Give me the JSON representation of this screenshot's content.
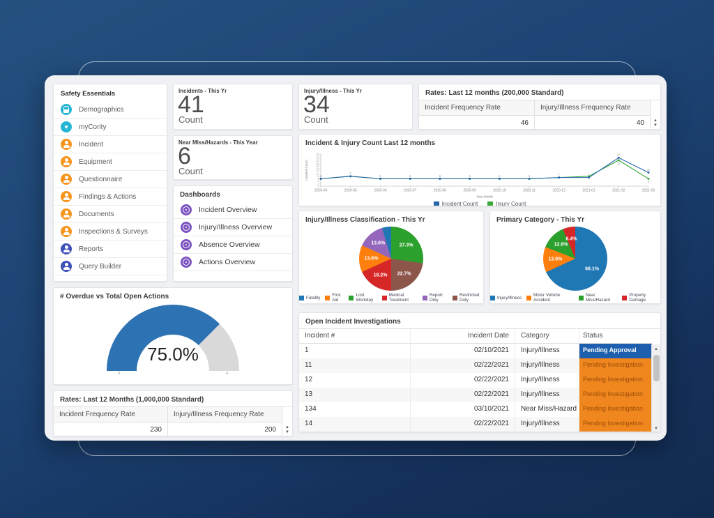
{
  "sidebar": {
    "title": "Safety Essentials",
    "items": [
      {
        "label": "Demographics",
        "icon": "lock-icon",
        "color": "#23b5d3"
      },
      {
        "label": "myCority",
        "icon": "heart-icon",
        "color": "#23b5d3"
      },
      {
        "label": "Incident",
        "icon": "person-icon",
        "color": "#f7941d"
      },
      {
        "label": "Equipment",
        "icon": "person-icon",
        "color": "#f7941d"
      },
      {
        "label": "Questionnaire",
        "icon": "person-icon",
        "color": "#f7941d"
      },
      {
        "label": "Findings & Actions",
        "icon": "person-icon",
        "color": "#f7941d"
      },
      {
        "label": "Documents",
        "icon": "person-icon",
        "color": "#f7941d"
      },
      {
        "label": "Inspections & Surveys",
        "icon": "person-icon",
        "color": "#f7941d"
      },
      {
        "label": "Reports",
        "icon": "person-icon",
        "color": "#3f51b5"
      },
      {
        "label": "Query Builder",
        "icon": "person-icon",
        "color": "#3f51b5"
      }
    ]
  },
  "stat_cards": {
    "incidents": {
      "title": "Incidents - This Yr",
      "value": "41",
      "unit": "Count"
    },
    "near_miss": {
      "title": "Near Miss/Hazards - This Year",
      "value": "6",
      "unit": "Count"
    },
    "injury": {
      "title": "Injury/Illness - This Yr",
      "value": "34",
      "unit": "Count"
    }
  },
  "dashboards_panel": {
    "title": "Dashboards",
    "icon": "gauge-icon",
    "icon_color": "#7b52c1",
    "items": [
      "Incident Overview",
      "Injury/Illness Overview",
      "Absence Overview",
      "Actions Overview"
    ]
  },
  "rates_200k": {
    "title": "Rates: Last 12 months (200,000 Standard)",
    "columns": [
      "Incident Frequency Rate",
      "Injury/Illness Frequency Rate"
    ],
    "values": [
      "46",
      "40"
    ]
  },
  "rates_1m": {
    "title": "Rates: Last 12 Months (1,000,000 Standard)",
    "columns": [
      "Incident Frequency Rate",
      "Injury/Illness Frequency Rate"
    ],
    "values": [
      "230",
      "200"
    ]
  },
  "table": {
    "title": "Open Incident Investigations",
    "columns": [
      "Incident #",
      "Incident Date",
      "Category",
      "Status"
    ],
    "rows": [
      [
        "1",
        "02/10/2021",
        "Injury/Illness",
        "Pending Approval"
      ],
      [
        "11",
        "02/22/2021",
        "Injury/Illness",
        "Pending Investigation"
      ],
      [
        "12",
        "02/22/2021",
        "Injury/Illness",
        "Pending Investigation"
      ],
      [
        "13",
        "02/22/2021",
        "Injury/Illness",
        "Pending Investigation"
      ],
      [
        "134",
        "03/10/2021",
        "Near Miss/Hazard",
        "Pending Investigation"
      ],
      [
        "14",
        "02/22/2021",
        "Injury/Illness",
        "Pending Investigation"
      ]
    ],
    "status_styles": {
      "Pending Approval": {
        "bg": "#1d5fae",
        "color": "#ffffff",
        "bold": true
      },
      "Pending Investigation": {
        "bg": "#f0861e",
        "color": "#9c4e0a",
        "bold": false
      }
    }
  },
  "chart_data": [
    {
      "type": "line",
      "title": "Incident & Injury Count Last 12 months",
      "xlabel": "Year-Month",
      "ylabel": "Incident Count",
      "x": [
        "2020-04",
        "2020-05",
        "2020-06",
        "2020-07",
        "2020-08",
        "2020-09",
        "2020-10",
        "2020-11",
        "2020-12",
        "2021-01",
        "2021-02",
        "2021-03"
      ],
      "series": [
        {
          "name": "Incident Count",
          "color": "#2565ae",
          "values": [
            6,
            8,
            6,
            6,
            6,
            6,
            6,
            6,
            7,
            7,
            23,
            11
          ]
        },
        {
          "name": "Injury Count",
          "color": "#3aa83a",
          "values": [
            6,
            8,
            6,
            6,
            6,
            6,
            6,
            6,
            7,
            8,
            21,
            6
          ]
        }
      ],
      "ylim": [
        0,
        26
      ],
      "ytick_step": 2,
      "grid": false,
      "legend_position": "bottom"
    },
    {
      "type": "pie",
      "title": "Injury/Illness Classification - This Yr",
      "start_angle": "top",
      "direction": "clockwise",
      "slices": [
        {
          "label": "Lost Workday",
          "value": 27.3,
          "color": "#2ca02c",
          "pct_label": "27.3%"
        },
        {
          "label": "Restricted Duty",
          "value": 22.7,
          "color": "#8c564b",
          "pct_label": "22.7%"
        },
        {
          "label": "Medical Treatment",
          "value": 18.2,
          "color": "#d62728",
          "pct_label": "18.2%"
        },
        {
          "label": "First Aid",
          "value": 13.6,
          "color": "#ff7f0e",
          "pct_label": "13.6%"
        },
        {
          "label": "Report Only",
          "value": 13.6,
          "color": "#9467bd",
          "pct_label": "13.6%"
        },
        {
          "label": "Fatality",
          "value": 4.6,
          "color": "#1f77b4",
          "pct_label": ""
        }
      ],
      "legend": [
        "Fatality",
        "First Aid",
        "Lost Workday",
        "Medical Treatment",
        "Report Only",
        "Restricted Duty"
      ]
    },
    {
      "type": "pie",
      "title": "Primary Category - This Yr",
      "start_angle": "top",
      "direction": "clockwise",
      "slices": [
        {
          "label": "Injury/Illness",
          "value": 68.1,
          "color": "#1f77b4",
          "pct_label": "68.1%"
        },
        {
          "label": "Motor Vehicle Accident",
          "value": 12.8,
          "color": "#ff7f0e",
          "pct_label": "12.8%"
        },
        {
          "label": "Near Miss/Hazard",
          "value": 12.8,
          "color": "#2ca02c",
          "pct_label": "12.8%"
        },
        {
          "label": "Property Damage",
          "value": 6.4,
          "color": "#d62728",
          "pct_label": "6.4%"
        }
      ],
      "legend": [
        "Injury/Illness",
        "Motor Vehicle Accident",
        "Near Miss/Hazard",
        "Property Damage"
      ]
    },
    {
      "type": "gauge",
      "title": "# Overdue vs Total Open Actions",
      "value_label": "75.0%",
      "percent": 75.0,
      "min_label": "0",
      "max_label": "4",
      "fill_color": "#2d73b3",
      "track_color": "#d9d9d9"
    }
  ]
}
